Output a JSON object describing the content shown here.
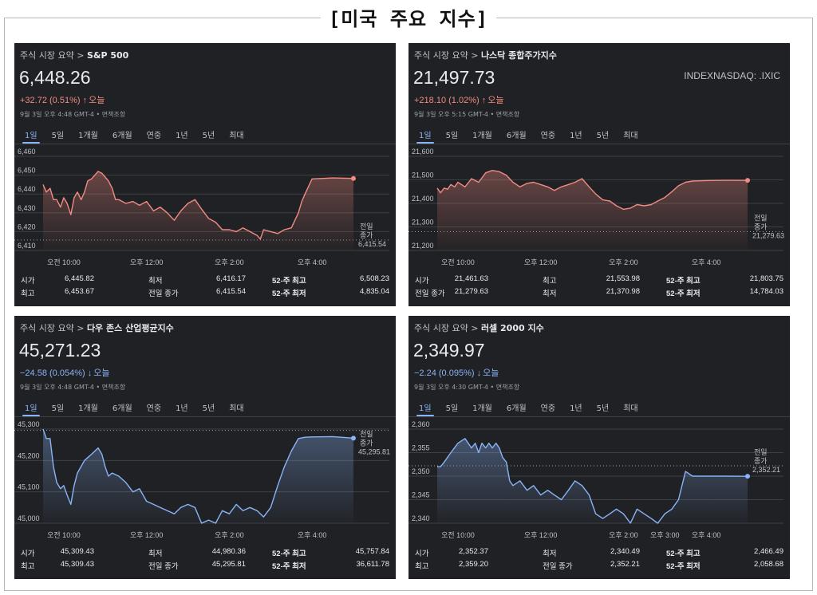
{
  "page_title": "[미국 주요 지수]",
  "ui": {
    "breadcrumb_prefix": "주식 시장 요약 >",
    "timestamp_suffix": "면책조항",
    "today": "오늘",
    "prev_close_line1": "전일",
    "prev_close_line2": "종가",
    "tabs": [
      "1일",
      "5일",
      "1개월",
      "6개월",
      "연중",
      "1년",
      "5년",
      "최대"
    ],
    "up_color": "#f28b82",
    "down_color": "#8ab4f8"
  },
  "cards": [
    {
      "name": "S&P 500",
      "price": "6,448.26",
      "symbol": "",
      "change": "+32.72 (0.51%)",
      "direction": "up",
      "timestamp": "9월 3일 오후 4:48 GMT-4",
      "stats": [
        [
          "시가",
          "6,445.82",
          "최저",
          "6,416.17",
          "52-주 최고",
          "6,508.23"
        ],
        [
          "최고",
          "6,453.67",
          "전일 종가",
          "6,415.54",
          "52-주 최저",
          "4,835.04"
        ]
      ]
    },
    {
      "name": "나스닥 종합주가지수",
      "price": "21,497.73",
      "symbol": "INDEXNASDAQ: .IXIC",
      "change": "+218.10 (1.02%)",
      "direction": "up",
      "timestamp": "9월 3일 오후 5:15 GMT-4",
      "stats": [
        [
          "시가",
          "21,461.63",
          "최고",
          "21,553.98",
          "52-주 최고",
          "21,803.75"
        ],
        [
          "전일 종가",
          "21,279.63",
          "최저",
          "21,370.98",
          "52-주 최저",
          "14,784.03"
        ]
      ]
    },
    {
      "name": "다우 존스 산업평균지수",
      "price": "45,271.23",
      "symbol": "",
      "change": "−24.58 (0.054%)",
      "direction": "down",
      "timestamp": "9월 3일 오후 4:48 GMT-4",
      "stats": [
        [
          "시가",
          "45,309.43",
          "최저",
          "44,980.36",
          "52-주 최고",
          "45,757.84"
        ],
        [
          "최고",
          "45,309.43",
          "전일 종가",
          "45,295.81",
          "52-주 최저",
          "36,611.78"
        ]
      ]
    },
    {
      "name": "러셀 2000 지수",
      "price": "2,349.97",
      "symbol": "",
      "change": "−2.24 (0.095%)",
      "direction": "down",
      "timestamp": "9월 3일 오후 4:30 GMT-4",
      "stats": [
        [
          "시가",
          "2,352.37",
          "최저",
          "2,340.49",
          "52-주 최고",
          "2,466.49"
        ],
        [
          "최고",
          "2,359.20",
          "전일 종가",
          "2,352.21",
          "52-주 최저",
          "2,058.68"
        ]
      ]
    }
  ],
  "chart_data": [
    {
      "type": "line",
      "title": "S&P 500",
      "x_unit": "hours",
      "x_start": 9.5,
      "x_end": 16.0,
      "xticks": [
        {
          "value": 10,
          "label": "오전 10:00"
        },
        {
          "value": 12,
          "label": "오후 12:00"
        },
        {
          "value": 14,
          "label": "오후 2:00"
        },
        {
          "value": 16,
          "label": "오후 4:00"
        }
      ],
      "yticks": [
        6410,
        6420,
        6430,
        6440,
        6450,
        6460
      ],
      "ylim": [
        6410,
        6460
      ],
      "prev_close": 6415.54,
      "prev_close_label": "6,415.54",
      "series": [
        {
          "x": [
            9.5,
            9.58,
            9.67,
            9.75,
            9.83,
            9.92,
            10.0,
            10.08,
            10.17,
            10.25,
            10.33,
            10.42,
            10.5,
            10.58,
            10.67,
            10.75,
            10.83,
            10.92,
            11.0,
            11.08,
            11.17,
            11.25,
            11.33,
            11.5,
            11.67,
            11.83,
            12.0,
            12.17,
            12.33,
            12.5,
            12.67,
            12.83,
            13.0,
            13.17,
            13.33,
            13.5,
            13.67,
            13.83,
            14.0,
            14.17,
            14.33,
            14.5,
            14.67,
            14.75,
            14.83,
            15.0,
            15.17,
            15.33,
            15.5,
            15.67,
            15.75,
            15.83,
            16.0,
            16.5,
            17.0
          ],
          "y": [
            6445,
            6441,
            6443,
            6437,
            6437,
            6433,
            6438,
            6435,
            6429,
            6438,
            6441,
            6437,
            6441,
            6447,
            6448,
            6450,
            6452,
            6451,
            6449,
            6447,
            6443,
            6437,
            6437,
            6435,
            6436,
            6434,
            6436,
            6431,
            6433,
            6430,
            6426,
            6431,
            6435,
            6437,
            6432,
            6427,
            6425,
            6421,
            6421,
            6420,
            6422,
            6420,
            6418,
            6416,
            6421,
            6420,
            6419,
            6421,
            6422,
            6430,
            6436,
            6440,
            6448,
            6448.5,
            6448.26
          ]
        }
      ]
    },
    {
      "type": "line",
      "title": "나스닥 종합주가지수",
      "x_unit": "hours",
      "x_start": 9.5,
      "x_end": 16.0,
      "xticks": [
        {
          "value": 10,
          "label": "오전 10:00"
        },
        {
          "value": 12,
          "label": "오후 12:00"
        },
        {
          "value": 14,
          "label": "오후 2:00"
        },
        {
          "value": 16,
          "label": "오후 4:00"
        }
      ],
      "yticks": [
        21200,
        21300,
        21400,
        21500,
        21600
      ],
      "ylim": [
        21200,
        21600
      ],
      "prev_close": 21279.63,
      "prev_close_label": "21,279.63",
      "series": [
        {
          "x": [
            9.5,
            9.58,
            9.67,
            9.75,
            9.83,
            9.92,
            10.0,
            10.17,
            10.33,
            10.5,
            10.67,
            10.83,
            11.0,
            11.17,
            11.33,
            11.5,
            11.67,
            11.83,
            12.0,
            12.17,
            12.33,
            12.5,
            12.67,
            12.83,
            13.0,
            13.17,
            13.33,
            13.5,
            13.67,
            13.83,
            14.0,
            14.17,
            14.33,
            14.5,
            14.67,
            14.83,
            15.0,
            15.17,
            15.33,
            15.5,
            15.67,
            15.83,
            16.0,
            16.5,
            17.0
          ],
          "y": [
            21465,
            21445,
            21465,
            21460,
            21480,
            21470,
            21490,
            21470,
            21505,
            21490,
            21530,
            21540,
            21535,
            21520,
            21490,
            21470,
            21485,
            21490,
            21480,
            21470,
            21455,
            21470,
            21480,
            21490,
            21505,
            21470,
            21440,
            21415,
            21410,
            21390,
            21375,
            21380,
            21395,
            21390,
            21395,
            21410,
            21425,
            21450,
            21475,
            21490,
            21495,
            21496,
            21497,
            21498,
            21497.73
          ]
        }
      ]
    },
    {
      "type": "line",
      "title": "다우 존스 산업평균지수",
      "x_unit": "hours",
      "x_start": 9.5,
      "x_end": 16.0,
      "xticks": [
        {
          "value": 10,
          "label": "오전 10:00"
        },
        {
          "value": 12,
          "label": "오후 12:00"
        },
        {
          "value": 14,
          "label": "오후 2:00"
        },
        {
          "value": 16,
          "label": "오후 4:00"
        }
      ],
      "yticks": [
        45000,
        45100,
        45200,
        45300
      ],
      "ylim": [
        45000,
        45300
      ],
      "prev_close": 45295.81,
      "prev_close_label": "45,295.81",
      "series": [
        {
          "x": [
            9.5,
            9.58,
            9.67,
            9.75,
            9.83,
            9.92,
            10.0,
            10.08,
            10.17,
            10.25,
            10.33,
            10.5,
            10.67,
            10.83,
            10.92,
            11.0,
            11.08,
            11.17,
            11.33,
            11.5,
            11.67,
            11.83,
            12.0,
            12.17,
            12.33,
            12.5,
            12.67,
            12.83,
            13.0,
            13.17,
            13.33,
            13.5,
            13.67,
            13.83,
            14.0,
            14.17,
            14.33,
            14.5,
            14.67,
            14.83,
            15.0,
            15.17,
            15.33,
            15.5,
            15.67,
            15.83,
            16.0,
            16.5,
            17.0
          ],
          "y": [
            45300,
            45270,
            45270,
            45180,
            45130,
            45110,
            45120,
            45090,
            45060,
            45120,
            45160,
            45200,
            45220,
            45240,
            45220,
            45180,
            45150,
            45160,
            45150,
            45130,
            45100,
            45110,
            45070,
            45060,
            45050,
            45040,
            45030,
            45050,
            45060,
            45050,
            45000,
            45010,
            45000,
            45040,
            45030,
            45060,
            45040,
            45050,
            45040,
            45020,
            45050,
            45120,
            45180,
            45230,
            45270,
            45274,
            45275,
            45276,
            45271.23
          ]
        }
      ]
    },
    {
      "type": "line",
      "title": "러셀 2000 지수",
      "x_unit": "hours",
      "x_start": 9.5,
      "x_end": 16.0,
      "xticks": [
        {
          "value": 10,
          "label": "오전 10:00"
        },
        {
          "value": 12,
          "label": "오후 12:00"
        },
        {
          "value": 14,
          "label": "오후 2:00"
        },
        {
          "value": 15,
          "label": "오후 3:00"
        },
        {
          "value": 16,
          "label": "오후 4:00"
        }
      ],
      "yticks": [
        2340,
        2345,
        2350,
        2355,
        2360
      ],
      "ylim": [
        2340,
        2360
      ],
      "prev_close": 2352.21,
      "prev_close_label": "2,352.21",
      "series": [
        {
          "x": [
            9.5,
            9.58,
            9.67,
            9.83,
            10.0,
            10.17,
            10.33,
            10.42,
            10.5,
            10.58,
            10.67,
            10.75,
            10.83,
            10.92,
            11.0,
            11.08,
            11.17,
            11.25,
            11.33,
            11.5,
            11.67,
            11.83,
            12.0,
            12.17,
            12.33,
            12.5,
            12.67,
            12.83,
            13.0,
            13.17,
            13.33,
            13.5,
            13.67,
            13.83,
            14.0,
            14.17,
            14.33,
            14.5,
            14.67,
            14.83,
            15.0,
            15.17,
            15.33,
            15.5,
            15.67,
            15.83,
            16.0,
            16.5,
            17.0
          ],
          "y": [
            2352,
            2352,
            2353,
            2355,
            2357,
            2358,
            2356,
            2357,
            2355,
            2357,
            2356,
            2357,
            2356,
            2357,
            2356,
            2354,
            2353,
            2349,
            2348,
            2349,
            2347,
            2348,
            2346,
            2347,
            2346,
            2345,
            2347,
            2349,
            2348,
            2346,
            2342,
            2341,
            2342,
            2343,
            2342,
            2340,
            2343,
            2342,
            2341,
            2340,
            2342,
            2343,
            2345,
            2351,
            2350,
            2350,
            2350,
            2350,
            2349.97
          ]
        }
      ]
    }
  ]
}
